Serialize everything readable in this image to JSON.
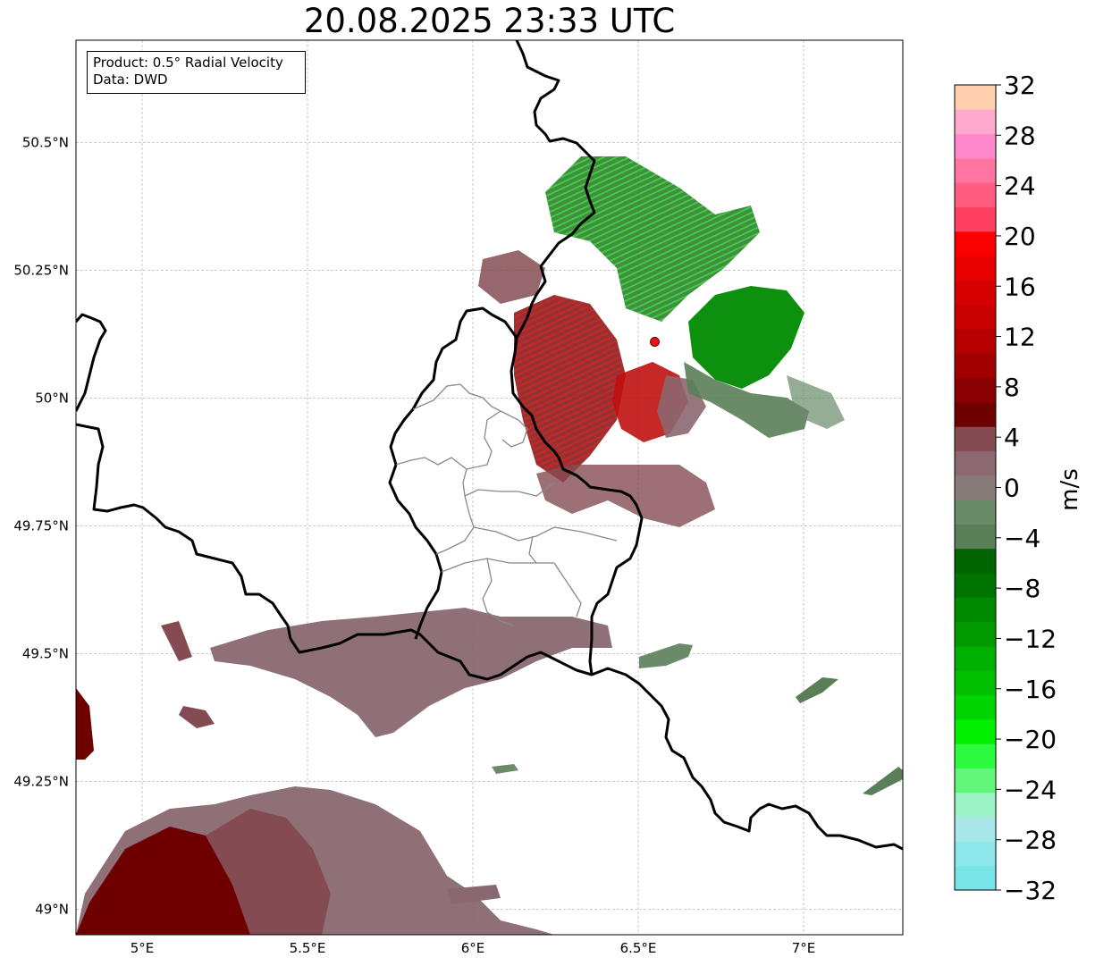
{
  "title": "20.08.2025 23:33 UTC",
  "info_box": {
    "line1": "Product: 0.5° Radial Velocity",
    "line2": "Data: DWD"
  },
  "map": {
    "lon_range": [
      4.8,
      7.3
    ],
    "lat_range": [
      48.95,
      50.7
    ],
    "x_ticks": [
      {
        "value": 5.0,
        "label": "5°E"
      },
      {
        "value": 5.5,
        "label": "5.5°E"
      },
      {
        "value": 6.0,
        "label": "6°E"
      },
      {
        "value": 6.5,
        "label": "6.5°E"
      },
      {
        "value": 7.0,
        "label": "7°E"
      }
    ],
    "y_ticks": [
      {
        "value": 49.0,
        "label": "49°N"
      },
      {
        "value": 49.25,
        "label": "49.25°N"
      },
      {
        "value": 49.5,
        "label": "49.5°N"
      },
      {
        "value": 49.75,
        "label": "49.75°N"
      },
      {
        "value": 50.0,
        "label": "50°N"
      },
      {
        "value": 50.25,
        "label": "50.25°N"
      },
      {
        "value": 50.5,
        "label": "50.5°N"
      }
    ],
    "grid": true,
    "radar_site": {
      "lon": 6.55,
      "lat": 50.11,
      "color": "#e8141c"
    },
    "border_color": "#000000",
    "admin_border_color": "#888888"
  },
  "colorbar": {
    "label": "m/s",
    "min": -32,
    "max": 32,
    "step": 4,
    "tick_labels": [
      "32",
      "28",
      "24",
      "20",
      "16",
      "12",
      "8",
      "4",
      "0",
      "−4",
      "−8",
      "−12",
      "−16",
      "−20",
      "−24",
      "−28",
      "−32"
    ],
    "tick_values": [
      32,
      28,
      24,
      20,
      16,
      12,
      8,
      4,
      0,
      -4,
      -8,
      -12,
      -16,
      -20,
      -24,
      -28,
      -32
    ],
    "colors_bottom_to_top": [
      "#79e5e8",
      "#8ce7ea",
      "#a8e8ea",
      "#9ef2c8",
      "#63f77a",
      "#2cfb3f",
      "#00f000",
      "#00d400",
      "#00c000",
      "#00b000",
      "#009a00",
      "#008a00",
      "#007400",
      "#006400",
      "#5a7e58",
      "#6a8a68",
      "#887a78",
      "#8c6870",
      "#844c52",
      "#6e0000",
      "#8a0000",
      "#a20000",
      "#b60000",
      "#c80000",
      "#d60000",
      "#e80000",
      "#fa0000",
      "#ff4060",
      "#ff5c80",
      "#ff74a0",
      "#ff88cc",
      "#ffaacc",
      "#ffcfb0"
    ]
  }
}
